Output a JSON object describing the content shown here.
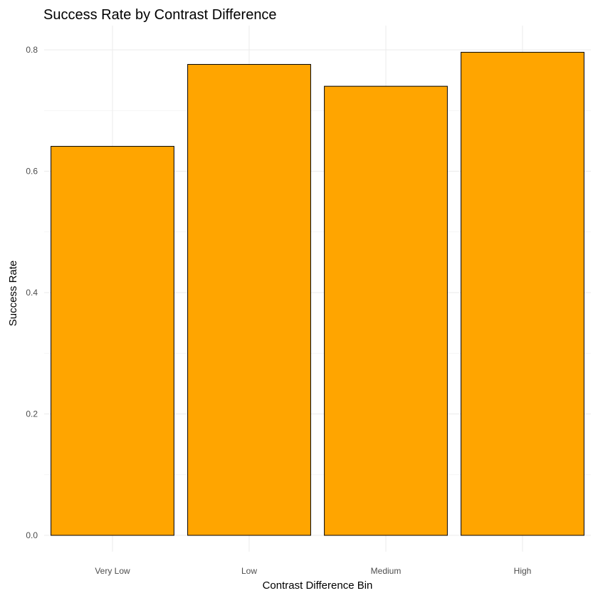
{
  "chart_data": {
    "type": "bar",
    "title": "Success Rate by Contrast Difference",
    "xlabel": "Contrast Difference Bin",
    "ylabel": "Success Rate",
    "categories": [
      "Very Low",
      "Low",
      "Medium",
      "High"
    ],
    "values": [
      0.641,
      0.776,
      0.74,
      0.796
    ],
    "ylim": [
      0,
      0.8
    ],
    "yticks": [
      "0.0",
      "0.2",
      "0.4",
      "0.6",
      "0.8"
    ],
    "ytick_values": [
      0,
      0.2,
      0.4,
      0.6,
      0.8
    ],
    "grid": true,
    "legend": "none",
    "colors": {
      "bar_fill": "#FFA500",
      "bar_outline": "#000000"
    }
  }
}
